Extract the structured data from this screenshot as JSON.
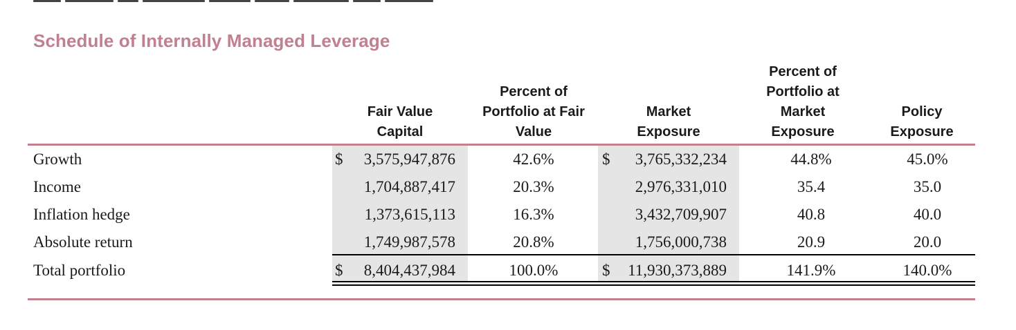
{
  "title": "Schedule of Internally Managed Leverage",
  "headers": {
    "fair_value_capital": [
      "Fair Value",
      "Capital"
    ],
    "percent_fair_value": [
      "Percent of",
      "Portfolio at Fair",
      "Value"
    ],
    "market_exposure": [
      "Market",
      "Exposure"
    ],
    "percent_market_exposure": [
      "Percent of",
      "Portfolio at",
      "Market",
      "Exposure"
    ],
    "policy_exposure": [
      "Policy",
      "Exposure"
    ]
  },
  "currency_symbol": "$",
  "rows": [
    {
      "label": "Growth",
      "fair_value": "3,575,947,876",
      "pct_fair": "42.6%",
      "market": "3,765,332,234",
      "pct_market": "44.8%",
      "policy": "45.0%",
      "dollar": true
    },
    {
      "label": "Income",
      "fair_value": "1,704,887,417",
      "pct_fair": "20.3%",
      "market": "2,976,331,010",
      "pct_market": "35.4",
      "policy": "35.0",
      "dollar": false
    },
    {
      "label": "Inflation hedge",
      "fair_value": "1,373,615,113",
      "pct_fair": "16.3%",
      "market": "3,432,709,907",
      "pct_market": "40.8",
      "policy": "40.0",
      "dollar": false
    },
    {
      "label": "Absolute return",
      "fair_value": "1,749,987,578",
      "pct_fair": "20.8%",
      "market": "1,756,000,738",
      "pct_market": "20.9",
      "policy": "20.0",
      "dollar": false
    }
  ],
  "total": {
    "label": "Total portfolio",
    "fair_value": "8,404,437,984",
    "pct_fair": "100.0%",
    "market": "11,930,373,889",
    "pct_market": "141.9%",
    "policy": "140.0%"
  },
  "colors": {
    "accent": "#c0808f",
    "shade": "#e5e5e5"
  }
}
